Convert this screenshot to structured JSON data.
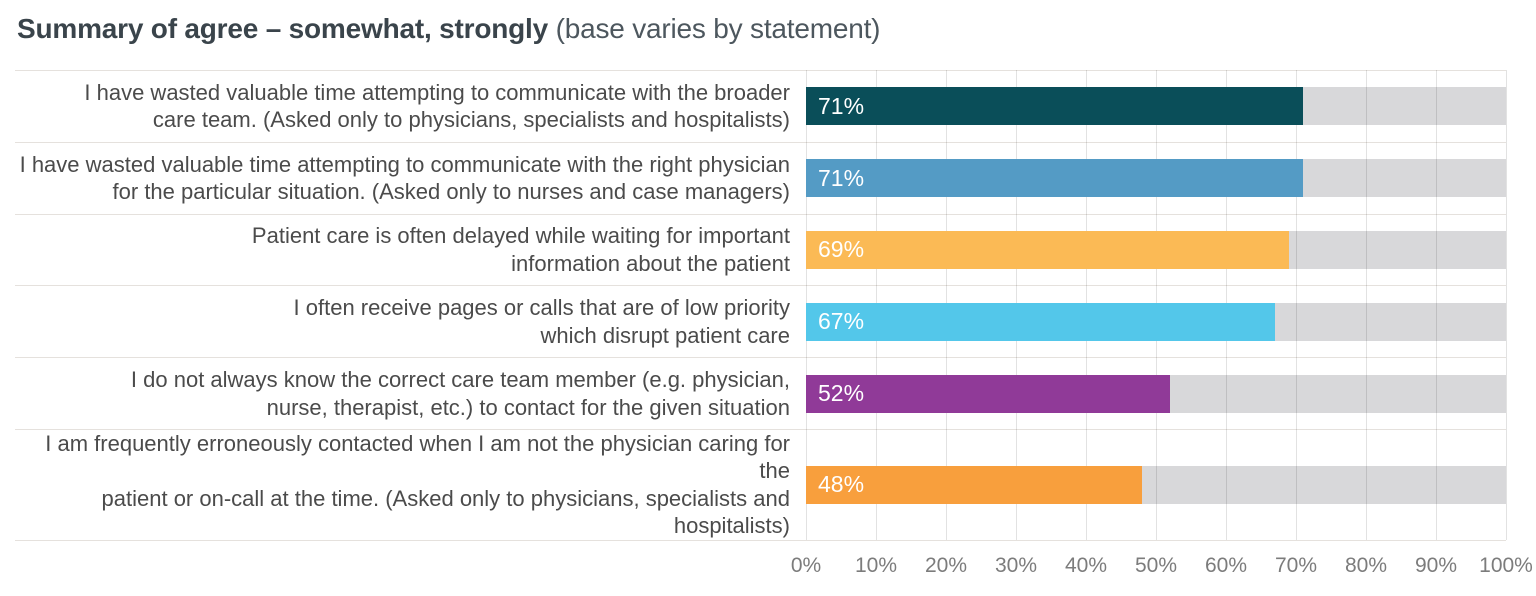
{
  "page": {
    "title_bold": "Summary of agree – somewhat, strongly",
    "title_regular": " (base varies by statement)"
  },
  "chart_data": {
    "type": "bar",
    "orientation": "horizontal",
    "title": "Summary of agree – somewhat, strongly (base varies by statement)",
    "xlabel": "",
    "ylabel": "",
    "xlim": [
      0,
      100
    ],
    "grid": true,
    "x_ticks": [
      "0%",
      "10%",
      "20%",
      "30%",
      "40%",
      "50%",
      "60%",
      "70%",
      "80%",
      "90%",
      "100%"
    ],
    "track_color": "#d8d8da",
    "rows": [
      {
        "label": "I have wasted valuable time attempting to communicate with the broader\ncare team. (Asked only to physicians, specialists and hospitalists)",
        "value": 71,
        "value_label": "71%",
        "color": "#0a4e59"
      },
      {
        "label": "I have wasted valuable time attempting to communicate with the right physician\nfor the particular situation. (Asked only to nurses and case managers)",
        "value": 71,
        "value_label": "71%",
        "color": "#549bc5"
      },
      {
        "label": "Patient care is often delayed while waiting for important\ninformation about the patient",
        "value": 69,
        "value_label": "69%",
        "color": "#fbba55"
      },
      {
        "label": "I often receive pages or calls that are of low priority\nwhich disrupt patient care",
        "value": 67,
        "value_label": "67%",
        "color": "#53c7ea"
      },
      {
        "label": "I do not always know the correct care team member (e.g. physician,\nnurse, therapist, etc.) to contact for the given situation",
        "value": 52,
        "value_label": "52%",
        "color": "#903a98"
      },
      {
        "label": "I am frequently erroneously contacted when I am not the physician caring for the\npatient or on-call at the time. (Asked only to physicians, specialists and hospitalists)",
        "value": 48,
        "value_label": "48%",
        "color": "#f89f3d"
      }
    ]
  }
}
